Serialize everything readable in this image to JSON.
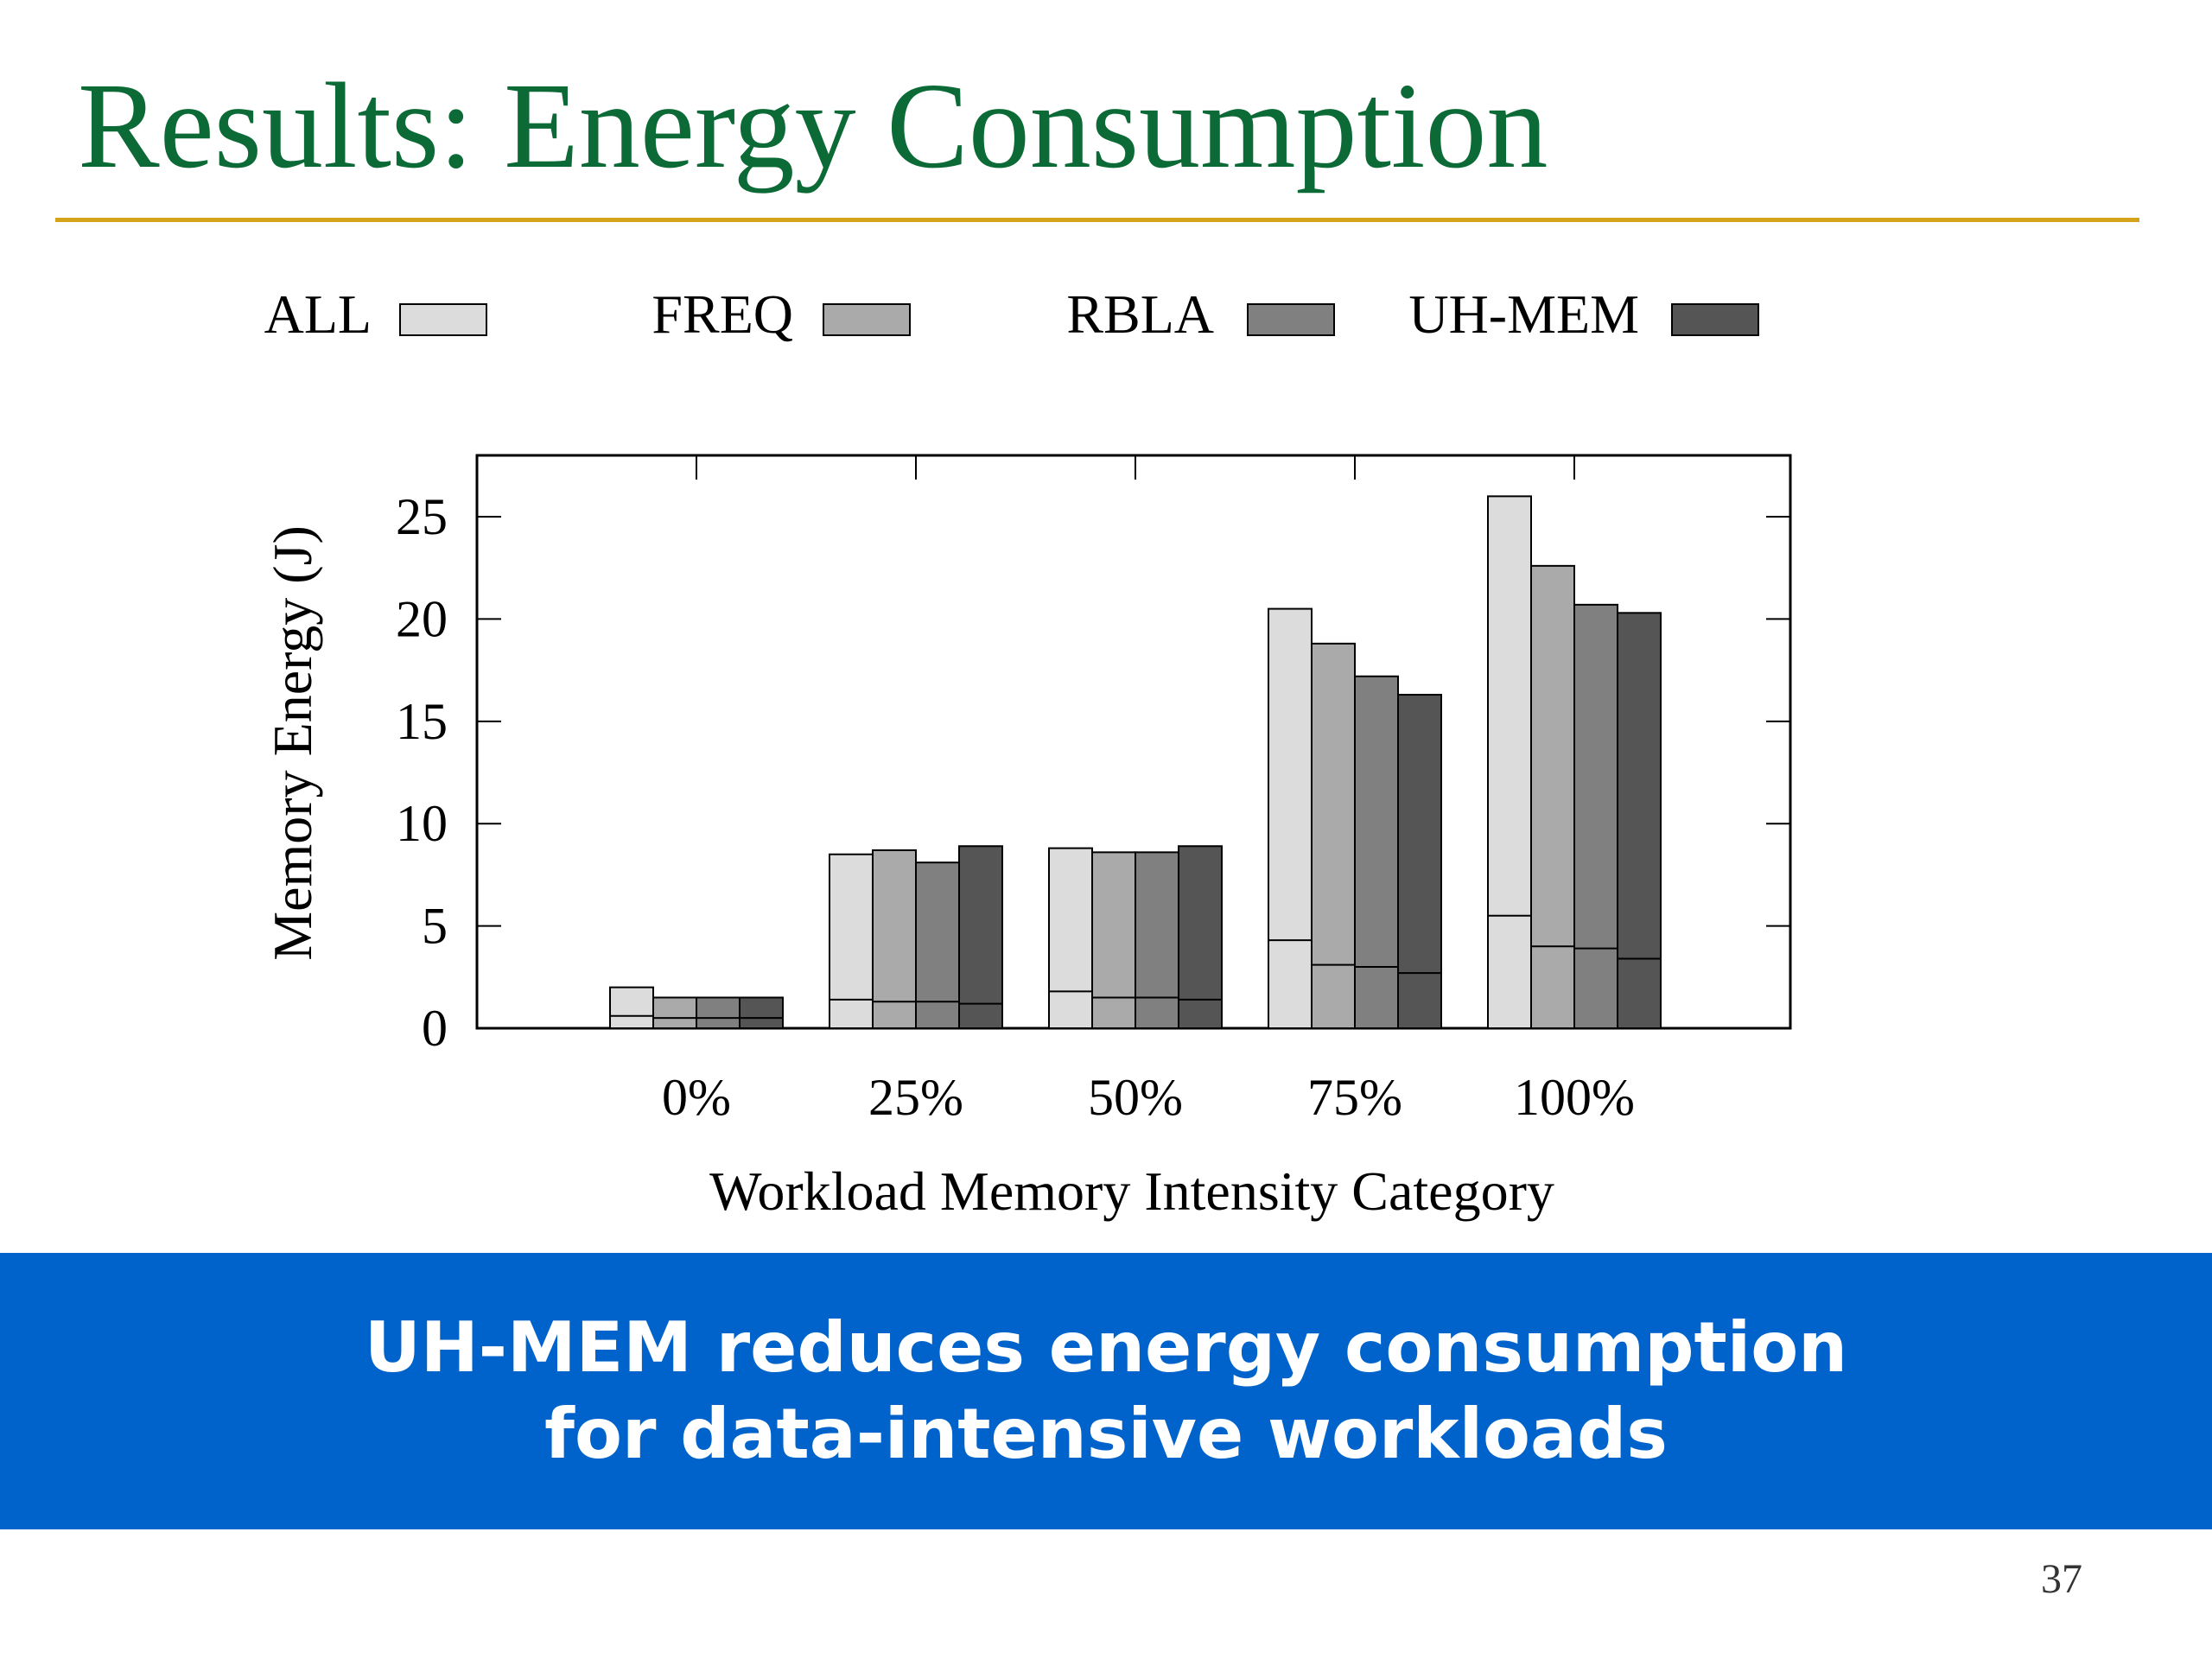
{
  "slide": {
    "title": "Results: Energy Consumption",
    "page_number": "37"
  },
  "callout": {
    "line1": "UH-MEM reduces energy consumption",
    "line2": "for data-intensive workloads",
    "background_color": "#0063cc"
  },
  "colors": {
    "title": "#0b6a35",
    "rule": "#d4a319"
  },
  "chart_data": {
    "type": "bar",
    "title": "",
    "xlabel": "Workload Memory Intensity Category",
    "ylabel": "Memory Energy (J)",
    "categories": [
      "0%",
      "25%",
      "50%",
      "75%",
      "100%"
    ],
    "ylim": [
      0,
      28
    ],
    "yticks": [
      0,
      5,
      10,
      15,
      20,
      25
    ],
    "grid": false,
    "legend_position": "top",
    "stacked_split_note_values_are_totals_and_lower_segment": true,
    "series": [
      {
        "name": "ALL",
        "color": "#dcdcdc",
        "values": [
          2.0,
          8.5,
          8.8,
          20.5,
          26.0
        ],
        "lower_segment": [
          0.6,
          1.4,
          1.8,
          4.3,
          5.5
        ]
      },
      {
        "name": "FREQ",
        "color": "#aaaaaa",
        "values": [
          1.5,
          8.7,
          8.6,
          18.8,
          22.6
        ],
        "lower_segment": [
          0.5,
          1.3,
          1.5,
          3.1,
          4.0
        ]
      },
      {
        "name": "RBLA",
        "color": "#808080",
        "values": [
          1.5,
          8.1,
          8.6,
          17.2,
          20.7
        ],
        "lower_segment": [
          0.5,
          1.3,
          1.5,
          3.0,
          3.9
        ]
      },
      {
        "name": "UH-MEM",
        "color": "#555555",
        "values": [
          1.5,
          8.9,
          8.9,
          16.3,
          20.3
        ],
        "lower_segment": [
          0.5,
          1.2,
          1.4,
          2.7,
          3.4
        ]
      }
    ]
  }
}
